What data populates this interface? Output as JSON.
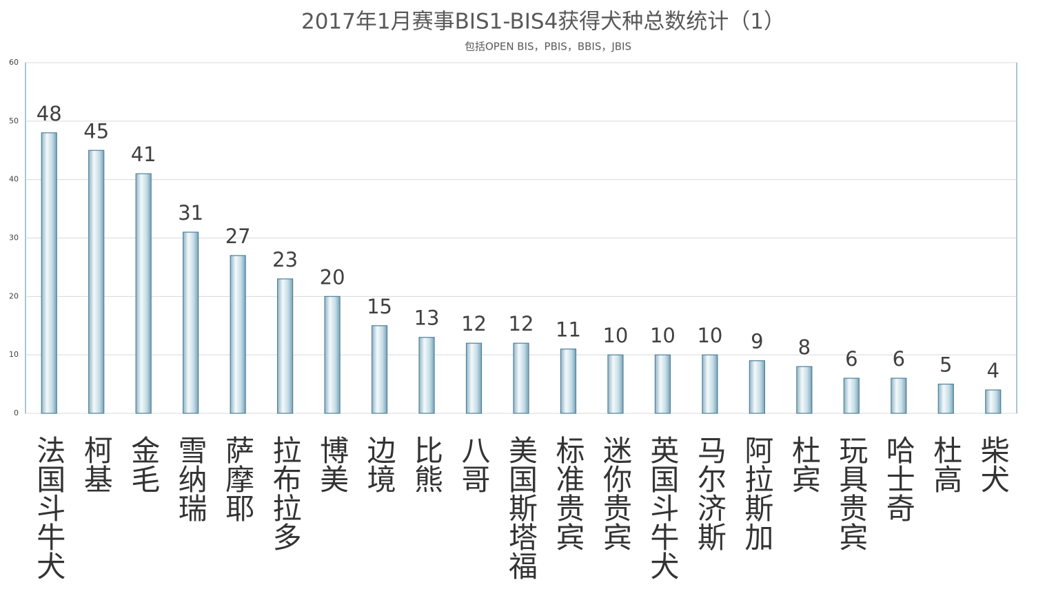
{
  "chart_data": {
    "type": "bar",
    "title": "2017年1月赛事BIS1-BIS4获得犬种总数统计（1）",
    "subtitle": "包括OPEN BIS，PBIS，BBIS，JBIS",
    "categories": [
      "法国斗牛犬",
      "柯基",
      "金毛",
      "雪纳瑞",
      "萨摩耶",
      "拉布拉多",
      "博美",
      "边境",
      "比熊",
      "八哥",
      "美国斯塔福",
      "标准贵宾",
      "迷你贵宾",
      "英国斗牛犬",
      "马尔济斯",
      "阿拉斯加",
      "杜宾",
      "玩具贵宾",
      "哈士奇",
      "杜高",
      "柴犬"
    ],
    "values": [
      48,
      45,
      41,
      31,
      27,
      23,
      20,
      15,
      13,
      12,
      12,
      11,
      10,
      10,
      10,
      9,
      8,
      6,
      6,
      5,
      4
    ],
    "color": "#a9cedb",
    "ylim": [
      0,
      60
    ],
    "yticks": [
      0,
      10,
      20,
      30,
      40,
      50,
      60
    ],
    "grid": true
  }
}
